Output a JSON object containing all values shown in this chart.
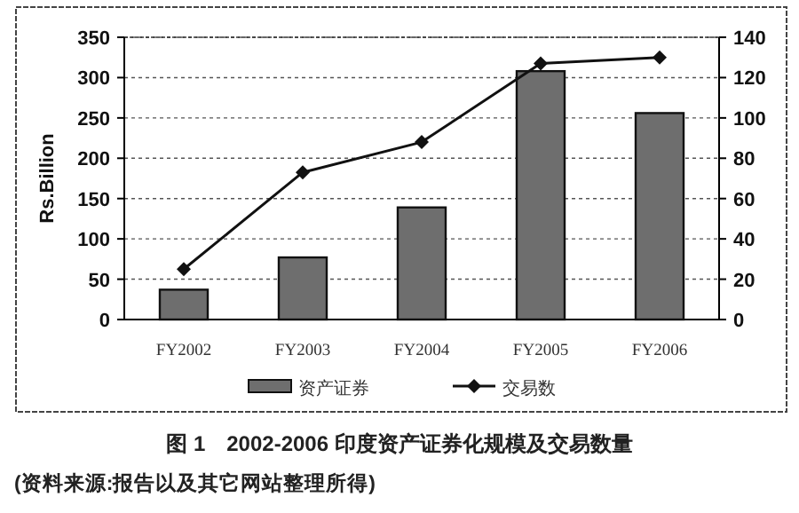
{
  "chart_data": {
    "type": "bar",
    "title": "图 1　2002-2006 印度资产证券化规模及交易数量",
    "annotations": [
      "(资料来源:报告以及其它网站整理所得)"
    ],
    "ylabel": "Rs.Billion",
    "categories": [
      "FY2002",
      "FY2003",
      "FY2004",
      "FY2005",
      "FY2006"
    ],
    "series": [
      {
        "name": "资产证券",
        "color": "#6e6e6e",
        "values": [
          37,
          77,
          139,
          308,
          256
        ]
      },
      {
        "name": "交易数",
        "type": "line",
        "axis": "y2",
        "color": "#111111",
        "marker": "diamond",
        "values": [
          25,
          73,
          88,
          127,
          130
        ]
      }
    ],
    "ylim": [
      0,
      350
    ],
    "yticks": [
      0,
      50,
      100,
      150,
      200,
      250,
      300,
      350
    ],
    "y2lim": [
      0,
      140
    ],
    "y2ticks": [
      0,
      20,
      40,
      60,
      80,
      100,
      120,
      140
    ],
    "grid": "y",
    "legend": "bottom"
  }
}
